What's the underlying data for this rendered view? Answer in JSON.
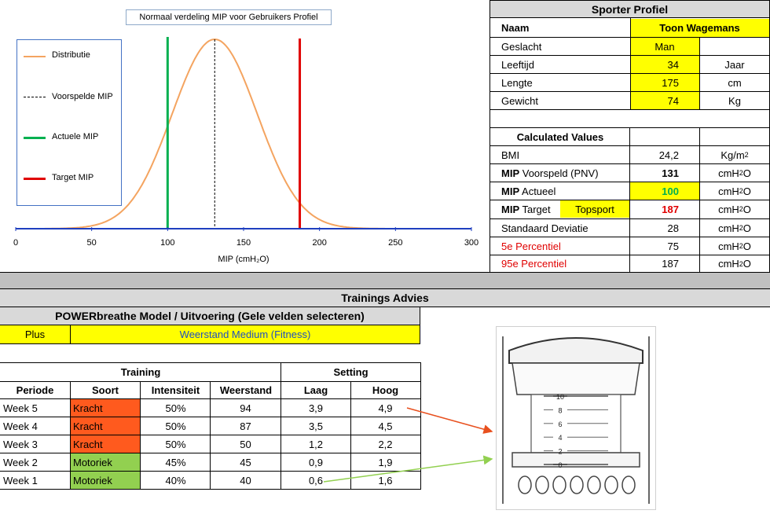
{
  "chart_data": {
    "type": "line",
    "title": "Normaal verdeling MIP voor Gebruikers Profiel",
    "xlabel": "MIP (cmH₂O)",
    "ylabel": "",
    "xlim": [
      0,
      300
    ],
    "xticks": [
      "0",
      "50",
      "100",
      "150",
      "200",
      "250",
      "300"
    ],
    "grid": false,
    "legend_position": "left",
    "series": [
      {
        "name": "Distributie",
        "kind": "normal-curve",
        "mean": 131,
        "sd": 28,
        "color": "#f4a460"
      },
      {
        "name": "Voorspelde MIP",
        "kind": "vline",
        "x": 131,
        "color": "#000000"
      },
      {
        "name": "Actuele MIP",
        "kind": "vline",
        "x": 100,
        "color": "#00b050"
      },
      {
        "name": "Target MIP",
        "kind": "vline",
        "x": 187,
        "color": "#e00000"
      }
    ]
  },
  "profile": {
    "header": "Sporter Profiel",
    "naam_label": "Naam",
    "naam_value": "Toon Wagemans",
    "rows": [
      {
        "label": "Geslacht",
        "value": "Man",
        "unit": ""
      },
      {
        "label": "Leeftijd",
        "value": "34",
        "unit": "Jaar"
      },
      {
        "label": "Lengte",
        "value": "175",
        "unit": "cm"
      },
      {
        "label": "Gewicht",
        "value": "74",
        "unit": "Kg"
      }
    ]
  },
  "calculated": {
    "header": "Calculated Values",
    "bmi_label": "BMI",
    "bmi_value": "24,2",
    "bmi_unit_base": "Kg/m",
    "bmi_unit_sup": "2",
    "mip_bold": "MIP",
    "pnv_rest": " Voorspeld (PNV)",
    "pnv_value": "131",
    "actueel_rest": " Actueel",
    "actueel_value": "100",
    "target_rest": " Target",
    "target_level": "Topsport",
    "target_value": "187",
    "sd_label": "Standaard Deviatie",
    "sd_value": "28",
    "p5_label": "5e Percentiel",
    "p5_value": "75",
    "p95_label": "95e Percentiel",
    "p95_value": "187",
    "unit_base": "cmH",
    "unit_sub": "2",
    "unit_end": "O"
  },
  "advice": {
    "header": "Trainings Advies",
    "model_header": "POWERbreathe Model / Uitvoering (Gele velden selecteren)",
    "model": "Plus",
    "resistance": "Weerstand Medium (Fitness)",
    "group_training": "Training",
    "group_setting": "Setting",
    "columns": [
      "Periode",
      "Soort",
      "Intensiteit",
      "Weerstand",
      "Laag",
      "Hoog"
    ],
    "rows": [
      {
        "periode": "Week 5",
        "soort": "Kracht",
        "intensiteit": "50%",
        "weerstand": "94",
        "laag": "3,9",
        "hoog": "4,9",
        "color": "#ff5a1e"
      },
      {
        "periode": "Week 4",
        "soort": "Kracht",
        "intensiteit": "50%",
        "weerstand": "87",
        "laag": "3,5",
        "hoog": "4,5",
        "color": "#ff5a1e"
      },
      {
        "periode": "Week 3",
        "soort": "Kracht",
        "intensiteit": "50%",
        "weerstand": "50",
        "laag": "1,2",
        "hoog": "2,2",
        "color": "#ff5a1e"
      },
      {
        "periode": "Week 2",
        "soort": "Motoriek",
        "intensiteit": "45%",
        "weerstand": "45",
        "laag": "0,9",
        "hoog": "1,9",
        "color": "#92d050"
      },
      {
        "periode": "Week 1",
        "soort": "Motoriek",
        "intensiteit": "40%",
        "weerstand": "40",
        "laag": "0,6",
        "hoog": "1,6",
        "color": "#92d050"
      }
    ]
  },
  "device": {
    "scale_labels": [
      "10",
      "8",
      "6",
      "4",
      "2",
      "0"
    ]
  }
}
